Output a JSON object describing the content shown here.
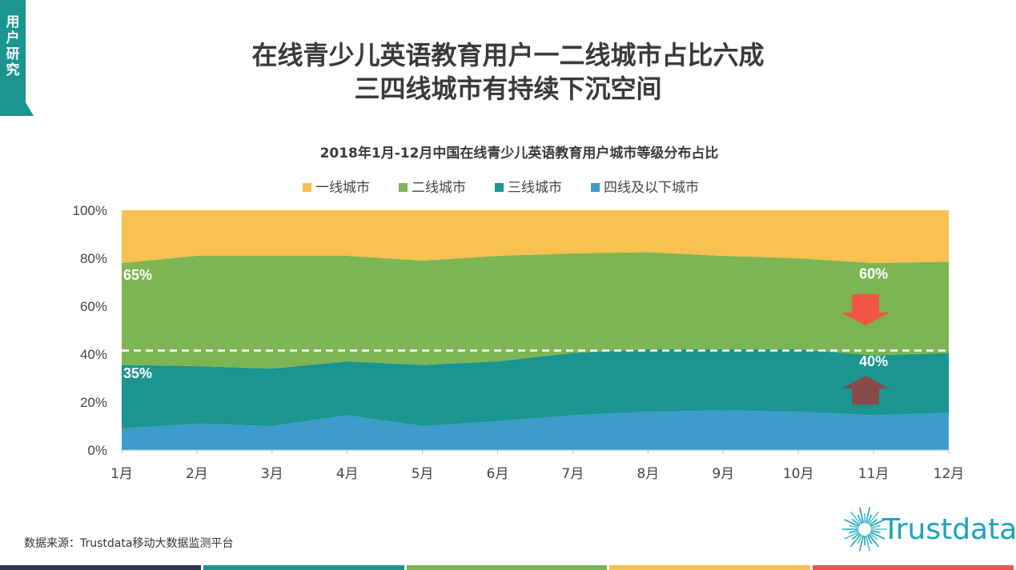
{
  "side_tab": {
    "label": "用户研究",
    "color": "#1a9590"
  },
  "title_line1": "在线青少儿英语教育用户一二线城市占比六成",
  "title_line2": "三四线城市有持续下沉空间",
  "source": "数据来源：Trustdata移动大数据监测平台",
  "logo_text": "Trustdata",
  "bottom_bar_colors": [
    "#2b3a4a",
    "#1a9590",
    "#7db553",
    "#f6c150",
    "#e4574b"
  ],
  "chart_data": {
    "type": "area",
    "stacked": true,
    "normalized": true,
    "title": "2018年1月-12月中国在线青少儿英语教育用户城市等级分布占比",
    "categories": [
      "1月",
      "2月",
      "3月",
      "4月",
      "5月",
      "6月",
      "7月",
      "8月",
      "9月",
      "10月",
      "11月",
      "12月"
    ],
    "y_ticks": [
      "0%",
      "20%",
      "40%",
      "60%",
      "80%",
      "100%"
    ],
    "ylim": [
      0,
      100
    ],
    "legend_position": "top",
    "series": [
      {
        "name": "四线及以下城市",
        "color": "#3d9ccb",
        "values": [
          9,
          11,
          10,
          14.5,
          10,
          12,
          14.5,
          16,
          16.5,
          16,
          14.5,
          15.5
        ]
      },
      {
        "name": "三线城市",
        "color": "#1a9590",
        "values": [
          26.5,
          24,
          24,
          22.5,
          25.5,
          25,
          26,
          26,
          25.5,
          26,
          25,
          25
        ]
      },
      {
        "name": "二线城市",
        "color": "#7db553",
        "values": [
          42.5,
          46,
          47,
          44,
          43.5,
          44,
          41.5,
          40.5,
          39,
          38,
          38.5,
          38
        ]
      },
      {
        "name": "一线城市",
        "color": "#f8c150",
        "values": [
          22,
          19,
          19,
          19,
          21,
          19,
          18,
          17.5,
          19,
          20,
          22,
          21.5
        ]
      }
    ],
    "reference_line": 41.5,
    "annotations": [
      {
        "text": "65%",
        "category": "1月",
        "y": 71
      },
      {
        "text": "35%",
        "category": "1月",
        "y": 30
      },
      {
        "text": "60%",
        "category": "11月",
        "y": 71.5
      },
      {
        "text": "40%",
        "category": "11月",
        "y": 35
      }
    ],
    "arrows": [
      {
        "direction": "down",
        "color": "#f05545",
        "category": "11月",
        "y_from": 65,
        "y_to": 52
      },
      {
        "direction": "up",
        "color": "#8a4a4a",
        "category": "11月",
        "y_from": 19,
        "y_to": 31
      }
    ]
  }
}
